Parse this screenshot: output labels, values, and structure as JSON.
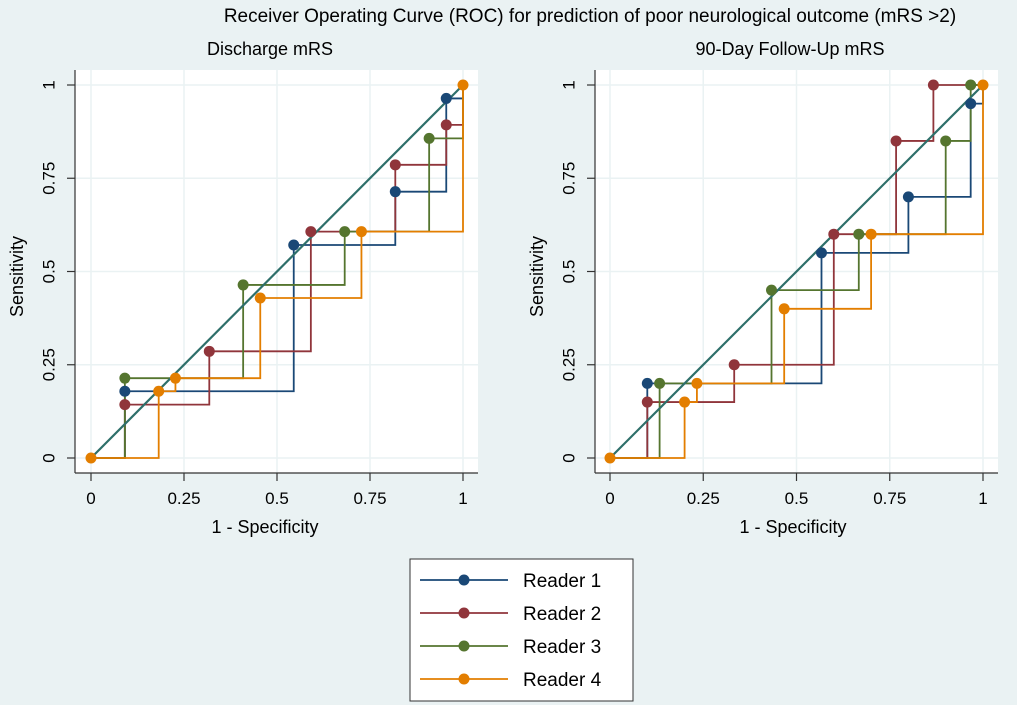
{
  "title": "Receiver Operating Curve (ROC) for prediction of poor neurological outcome (mRS >2)",
  "colors": {
    "background": "#eaf2f3",
    "plot_bg": "#ffffff",
    "grid": "#eaf2f3",
    "reference": "#2e6f6a",
    "reader1": "#1a4876",
    "reader2": "#90353b",
    "reader3": "#55752f",
    "reader4": "#e37e00"
  },
  "legend": {
    "placement": "bottom-center",
    "items": [
      {
        "label": "Reader 1",
        "color_key": "reader1"
      },
      {
        "label": "Reader 2",
        "color_key": "reader2"
      },
      {
        "label": "Reader 3",
        "color_key": "reader3"
      },
      {
        "label": "Reader 4",
        "color_key": "reader4"
      }
    ]
  },
  "chart_data": [
    {
      "type": "line",
      "title": "Discharge mRS",
      "xlabel": "1 - Specificity",
      "ylabel": "Sensitivity",
      "xlim": [
        0,
        1
      ],
      "ylim": [
        0,
        1
      ],
      "xticks": [
        0,
        0.25,
        0.5,
        0.75,
        1
      ],
      "xtick_labels": [
        "0",
        "0.25",
        "0.5",
        "0.75",
        "1"
      ],
      "yticks": [
        0,
        0.25,
        0.5,
        0.75,
        1
      ],
      "ytick_labels": [
        "0",
        "0.25",
        "0.5",
        "0.75",
        "1"
      ],
      "grid": true,
      "reference_line": [
        [
          0,
          0
        ],
        [
          1,
          1
        ]
      ],
      "series": [
        {
          "name": "Reader 1",
          "points": [
            [
              0,
              0
            ],
            [
              0.091,
              0.179
            ],
            [
              0.545,
              0.571
            ],
            [
              0.818,
              0.714
            ],
            [
              0.955,
              0.964
            ],
            [
              1,
              1
            ]
          ],
          "markers_from": 1
        },
        {
          "name": "Reader 2",
          "points": [
            [
              0,
              0
            ],
            [
              0.091,
              0.143
            ],
            [
              0.318,
              0.286
            ],
            [
              0.591,
              0.607
            ],
            [
              0.818,
              0.786
            ],
            [
              0.955,
              0.893
            ],
            [
              1,
              1
            ]
          ],
          "markers_from": 1
        },
        {
          "name": "Reader 3",
          "points": [
            [
              0,
              0
            ],
            [
              0.091,
              0.214
            ],
            [
              0.409,
              0.464
            ],
            [
              0.682,
              0.607
            ],
            [
              0.909,
              0.857
            ],
            [
              1,
              1
            ]
          ],
          "markers_from": 1
        },
        {
          "name": "Reader 4",
          "points": [
            [
              0,
              0
            ],
            [
              0.182,
              0.179
            ],
            [
              0.227,
              0.214
            ],
            [
              0.455,
              0.429
            ],
            [
              0.727,
              0.607
            ],
            [
              1,
              1
            ]
          ],
          "markers_from": 0
        }
      ]
    },
    {
      "type": "line",
      "title": "90-Day Follow-Up mRS",
      "xlabel": "1 - Specificity",
      "ylabel": "Sensitivity",
      "xlim": [
        0,
        1
      ],
      "ylim": [
        0,
        1
      ],
      "xticks": [
        0,
        0.25,
        0.5,
        0.75,
        1
      ],
      "xtick_labels": [
        "0",
        "0.25",
        "0.5",
        "0.75",
        "1"
      ],
      "yticks": [
        0,
        0.25,
        0.5,
        0.75,
        1
      ],
      "ytick_labels": [
        "0",
        "0.25",
        "0.5",
        "0.75",
        "1"
      ],
      "grid": true,
      "reference_line": [
        [
          0,
          0
        ],
        [
          1,
          1
        ]
      ],
      "series": [
        {
          "name": "Reader 1",
          "points": [
            [
              0,
              0
            ],
            [
              0.1,
              0.2
            ],
            [
              0.567,
              0.55
            ],
            [
              0.8,
              0.7
            ],
            [
              0.967,
              0.95
            ],
            [
              1,
              1
            ]
          ],
          "markers_from": 1
        },
        {
          "name": "Reader 2",
          "points": [
            [
              0,
              0
            ],
            [
              0.1,
              0.15
            ],
            [
              0.333,
              0.25
            ],
            [
              0.6,
              0.6
            ],
            [
              0.767,
              0.85
            ],
            [
              0.867,
              1.0
            ],
            [
              1,
              1
            ]
          ],
          "markers_from": 1
        },
        {
          "name": "Reader 3",
          "points": [
            [
              0,
              0
            ],
            [
              0.133,
              0.2
            ],
            [
              0.433,
              0.45
            ],
            [
              0.667,
              0.6
            ],
            [
              0.9,
              0.85
            ],
            [
              0.967,
              1.0
            ],
            [
              1,
              1
            ]
          ],
          "markers_from": 1
        },
        {
          "name": "Reader 4",
          "points": [
            [
              0,
              0
            ],
            [
              0.2,
              0.15
            ],
            [
              0.233,
              0.2
            ],
            [
              0.467,
              0.4
            ],
            [
              0.7,
              0.6
            ],
            [
              1,
              1
            ]
          ],
          "markers_from": 0
        }
      ]
    }
  ]
}
